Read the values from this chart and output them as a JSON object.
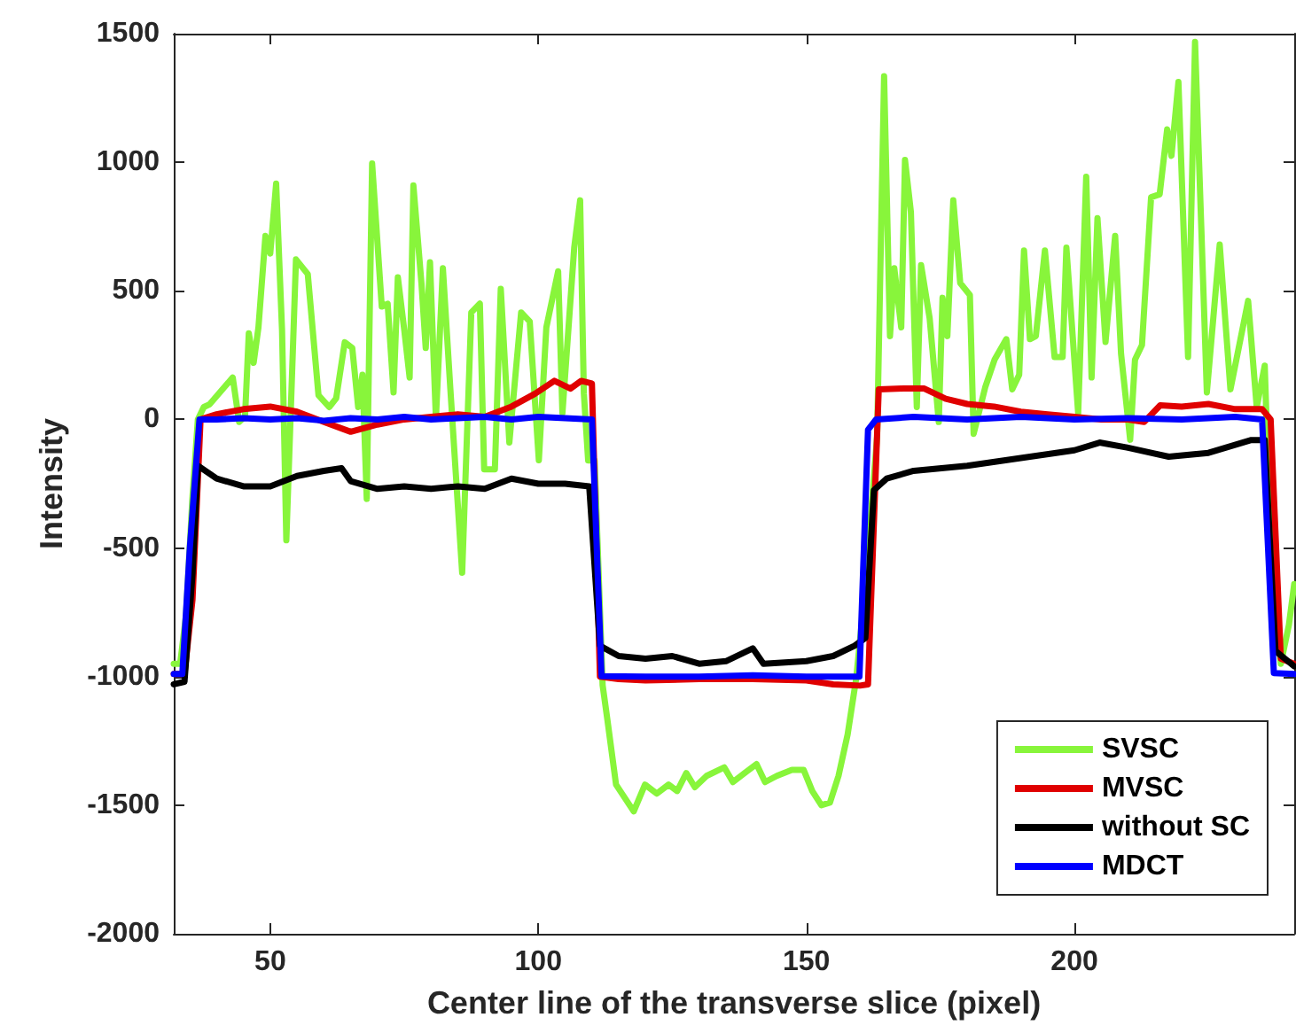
{
  "chart_data": {
    "type": "line",
    "xlabel": "Center line of the transverse slice (pixel)",
    "ylabel": "Intensity",
    "xlim": [
      32,
      241
    ],
    "xticks": [
      50,
      100,
      150,
      200
    ],
    "ylim": [
      -2000,
      1500
    ],
    "yticks": [
      -2000,
      -1500,
      -1000,
      -500,
      0,
      500,
      1000,
      1500
    ],
    "grid": false,
    "legend": "bottom right",
    "marker": "none",
    "line_style": "solid",
    "series": [
      {
        "name": "SVSC",
        "color": "#88f53b",
        "x": [
          32,
          33.2,
          34.3,
          35.5,
          36.5,
          37.6,
          38.7,
          43,
          44.2,
          45.3,
          46,
          46.9,
          47.8,
          49.1,
          50,
          51.1,
          52.2,
          53,
          54.8,
          57,
          59,
          61,
          62.3,
          63.9,
          65.3,
          66.4,
          67.2,
          68,
          69,
          70.8,
          71.9,
          73,
          73.8,
          75,
          76,
          76.7,
          78.2,
          79,
          79.8,
          80.9,
          82.2,
          83.6,
          85.8,
          87.5,
          89.1,
          89.9,
          91.9,
          93,
          94.6,
          96.8,
          98.4,
          100.1,
          101.5,
          103.7,
          104.5,
          106.7,
          107.8,
          108.5,
          109.3,
          110.5,
          112,
          112.9,
          114.5,
          117.8,
          119.9,
          122.1,
          124.3,
          125.9,
          127.6,
          129.2,
          131.4,
          134.7,
          136.3,
          138.5,
          140.7,
          142.3,
          144.5,
          147.3,
          149.5,
          151.1,
          152.8,
          154.4,
          156,
          157.7,
          159.3,
          161,
          163.2,
          164.5,
          165.6,
          166.4,
          167.7,
          168.4,
          169.5,
          170.6,
          171.4,
          173,
          174.7,
          175.4,
          176.3,
          177.4,
          178.7,
          180.5,
          181.2,
          183.4,
          185.1,
          187.3,
          188.4,
          189.7,
          190.6,
          191.7,
          192.8,
          194.5,
          196.3,
          197.8,
          198.5,
          200.7,
          202.2,
          203.2,
          204.3,
          205.8,
          207.6,
          208.7,
          210.4,
          211.3,
          212.6,
          214.3,
          215.9,
          217.3,
          218.1,
          219.4,
          221.2,
          222.5,
          224.7,
          227.1,
          229.1,
          232.4,
          234,
          235.5,
          236.8,
          238.5,
          240,
          241
        ],
        "values": [
          -950,
          -950,
          -760,
          -300,
          0,
          48,
          59,
          163,
          -10,
          13,
          335,
          220,
          358,
          714,
          645,
          917,
          347,
          -470,
          622,
          565,
          94,
          48,
          82,
          300,
          278,
          48,
          174,
          -309,
          995,
          439,
          450,
          105,
          553,
          347,
          163,
          910,
          530,
          278,
          611,
          2,
          588,
          117,
          -596,
          416,
          450,
          -194,
          -194,
          508,
          -90,
          416,
          381,
          -159,
          358,
          576,
          25,
          668,
          852,
          100,
          -160,
          -160,
          -1034,
          -1170,
          -1420,
          -1524,
          -1420,
          -1455,
          -1420,
          -1445,
          -1375,
          -1430,
          -1386,
          -1353,
          -1410,
          -1375,
          -1340,
          -1410,
          -1386,
          -1363,
          -1363,
          -1445,
          -1500,
          -1490,
          -1386,
          -1225,
          -1007,
          -650,
          -67,
          1335,
          324,
          588,
          358,
          1009,
          806,
          48,
          600,
          393,
          -10,
          473,
          324,
          852,
          530,
          484,
          -56,
          128,
          232,
          312,
          117,
          174,
          657,
          312,
          324,
          657,
          243,
          243,
          668,
          25,
          944,
          163,
          783,
          301,
          714,
          255,
          -79,
          232,
          289,
          864,
          875,
          1128,
          1025,
          1312,
          243,
          1468,
          105,
          680,
          117,
          461,
          48,
          209,
          -619,
          -950,
          -800,
          -640
        ]
      },
      {
        "name": "MVSC",
        "color": "#e00000",
        "x": [
          32,
          34,
          35.5,
          37,
          40,
          45,
          50,
          55,
          60,
          65,
          70,
          75,
          80,
          85,
          90,
          95,
          99.4,
          103,
          106,
          108,
          110,
          111.5,
          115,
          120,
          130,
          140,
          150,
          155,
          160,
          161.5,
          163.5,
          168,
          172,
          176,
          180,
          185,
          190,
          195,
          200,
          205,
          210,
          213,
          216,
          220,
          225,
          230,
          235,
          236.6,
          238.5,
          241
        ],
        "values": [
          -990,
          -990,
          -700,
          0,
          20,
          40,
          50,
          30,
          -10,
          -48,
          -20,
          0,
          10,
          20,
          10,
          50,
          100,
          150,
          120,
          150,
          140,
          -1000,
          -1010,
          -1015,
          -1010,
          -1010,
          -1015,
          -1030,
          -1035,
          -1030,
          117,
          120,
          120,
          80,
          60,
          50,
          30,
          20,
          10,
          0,
          0,
          -10,
          55,
          50,
          60,
          40,
          40,
          0,
          -930,
          -950
        ]
      },
      {
        "name": "without SC",
        "color": "#000000",
        "x": [
          32,
          34,
          35.5,
          36.5,
          40,
          45,
          50,
          55,
          60,
          63.3,
          65,
          70,
          75,
          80,
          85,
          90,
          95,
          100,
          105,
          109.5,
          111.5,
          115,
          120,
          125,
          130,
          135,
          140,
          142,
          150,
          155,
          159,
          161,
          162.6,
          165,
          170,
          180,
          190,
          200,
          204.7,
          210,
          217.6,
          225,
          233,
          235.5,
          237.5,
          241
        ],
        "values": [
          -1030,
          -1020,
          -600,
          -180,
          -230,
          -260,
          -260,
          -220,
          -200,
          -190,
          -240,
          -270,
          -260,
          -270,
          -260,
          -270,
          -230,
          -250,
          -250,
          -260,
          -880,
          -920,
          -930,
          -920,
          -950,
          -940,
          -890,
          -950,
          -940,
          -920,
          -880,
          -850,
          -275,
          -230,
          -200,
          -180,
          -150,
          -120,
          -90,
          -110,
          -145,
          -130,
          -80,
          -80,
          -900,
          -960
        ]
      },
      {
        "name": "MDCT",
        "color": "#0000ff",
        "x": [
          32,
          33.6,
          35,
          36.8,
          40,
          45,
          50,
          55,
          60,
          65,
          70,
          75,
          80,
          85,
          90,
          95,
          100,
          105,
          110,
          111.8,
          120,
          130,
          140,
          150,
          159.9,
          161.5,
          163,
          170,
          180,
          190,
          200,
          210,
          220,
          230,
          235,
          237.2,
          241
        ],
        "values": [
          -990,
          -990,
          -500,
          0,
          0,
          5,
          0,
          5,
          -5,
          5,
          0,
          10,
          0,
          5,
          10,
          0,
          10,
          5,
          0,
          -998,
          -1000,
          -1000,
          -995,
          -1000,
          -1000,
          -40,
          0,
          10,
          0,
          10,
          0,
          5,
          0,
          10,
          0,
          -986,
          -990
        ]
      }
    ]
  }
}
